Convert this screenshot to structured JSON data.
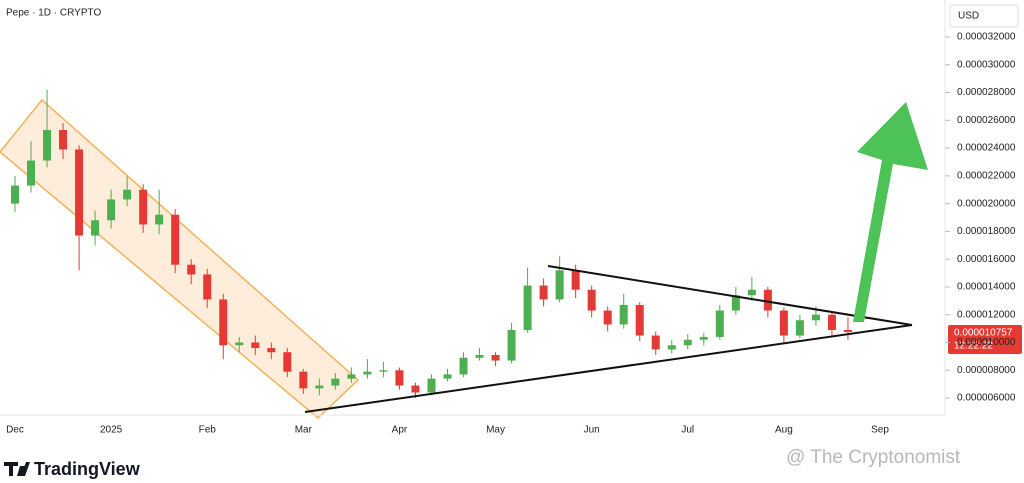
{
  "chart_data": {
    "type": "candlestick",
    "title": "Pepe · 1D · CRYPTO",
    "currency": "USD",
    "last_price_label": "0.000010757",
    "countdown": "12:22:22",
    "brand": "TradingView",
    "watermark": "@ The Cryptonomist",
    "up_color": "#4caf50",
    "down_color": "#e53935",
    "categories": [
      "Dec",
      null,
      null,
      null,
      null,
      null,
      "2025",
      null,
      null,
      null,
      null,
      null,
      "Feb",
      null,
      null,
      null,
      null,
      null,
      "Mar",
      null,
      null,
      null,
      null,
      null,
      "Apr",
      null,
      null,
      null,
      null,
      null,
      "May",
      null,
      null,
      null,
      null,
      null,
      "Jun",
      null,
      null,
      null,
      null,
      null,
      "Jul",
      null,
      null,
      null,
      null,
      null,
      "Aug",
      null,
      null,
      null,
      null,
      null,
      "Sep"
    ],
    "open": [
      2e-05,
      2.13e-05,
      2.31e-05,
      2.53e-05,
      2.39e-05,
      1.77e-05,
      1.88e-05,
      2.03e-05,
      2.1e-05,
      1.85e-05,
      1.92e-05,
      1.56e-05,
      1.49e-05,
      1.31e-05,
      9.8e-06,
      1e-05,
      9.6e-06,
      9.3e-06,
      7.9e-06,
      6.7e-06,
      6.9e-06,
      7.4e-06,
      7.7e-06,
      7.9e-06,
      8e-06,
      6.9e-06,
      6.4e-06,
      7.4e-06,
      7.7e-06,
      8.9e-06,
      9.1e-06,
      8.7e-06,
      1.09e-05,
      1.41e-05,
      1.31e-05,
      1.52e-05,
      1.38e-05,
      1.23e-05,
      1.13e-05,
      1.27e-05,
      1.05e-05,
      9.5e-06,
      9.8e-06,
      1.02e-05,
      1.04e-05,
      1.23e-05,
      1.34e-05,
      1.38e-05,
      1.23e-05,
      1.05e-05,
      1.16e-05,
      1.2e-05,
      1.09e-05,
      null,
      null
    ],
    "high": [
      2.2e-05,
      2.45e-05,
      2.82e-05,
      2.58e-05,
      2.42e-05,
      1.95e-05,
      2.1e-05,
      2.2e-05,
      2.14e-05,
      2.1e-05,
      1.96e-05,
      1.6e-05,
      1.53e-05,
      1.35e-05,
      1.04e-05,
      1.05e-05,
      1e-05,
      9.6e-06,
      8.1e-06,
      7.4e-06,
      7.8e-06,
      8.2e-06,
      8.8e-06,
      8.6e-06,
      8.2e-06,
      7.1e-06,
      7.7e-06,
      8.1e-06,
      9.3e-06,
      9.6e-06,
      9.3e-06,
      1.14e-05,
      1.54e-05,
      1.46e-05,
      1.62e-05,
      1.56e-05,
      1.41e-05,
      1.26e-05,
      1.35e-05,
      1.29e-05,
      1.08e-05,
      1.02e-05,
      1.06e-05,
      1.07e-05,
      1.27e-05,
      1.4e-05,
      1.47e-05,
      1.4e-05,
      1.25e-05,
      1.2e-05,
      1.26e-05,
      1.22e-05,
      1.18e-05,
      null,
      null
    ],
    "low": [
      1.94e-05,
      2.08e-05,
      2.26e-05,
      2.32e-05,
      1.52e-05,
      1.7e-05,
      1.82e-05,
      1.98e-05,
      1.79e-05,
      1.78e-05,
      1.5e-05,
      1.42e-05,
      1.25e-05,
      8.8e-06,
      9.3e-06,
      9.1e-06,
      8.8e-06,
      7.5e-06,
      6.3e-06,
      6.2e-06,
      6.6e-06,
      7.1e-06,
      7.4e-06,
      7.5e-06,
      6.6e-06,
      6e-06,
      6.2e-06,
      7.2e-06,
      7.5e-06,
      8.7e-06,
      8.3e-06,
      8.5e-06,
      1.07e-05,
      1.26e-05,
      1.29e-05,
      1.32e-05,
      1.18e-05,
      1.08e-05,
      1.1e-05,
      1.01e-05,
      9.1e-06,
      9.2e-06,
      9.5e-06,
      9.8e-06,
      1.02e-05,
      1.2e-05,
      1.3e-05,
      1.18e-05,
      1e-05,
      1.03e-05,
      1.12e-05,
      1.04e-05,
      1.02e-05,
      null,
      null
    ],
    "close": [
      2.13e-05,
      2.31e-05,
      2.53e-05,
      2.39e-05,
      1.77e-05,
      1.88e-05,
      2.03e-05,
      2.1e-05,
      1.85e-05,
      1.92e-05,
      1.56e-05,
      1.49e-05,
      1.31e-05,
      9.8e-06,
      1e-05,
      9.6e-06,
      9.3e-06,
      7.9e-06,
      6.7e-06,
      6.9e-06,
      7.4e-06,
      7.7e-06,
      7.9e-06,
      8e-06,
      6.9e-06,
      6.4e-06,
      7.4e-06,
      7.7e-06,
      8.9e-06,
      9.1e-06,
      8.7e-06,
      1.09e-05,
      1.41e-05,
      1.31e-05,
      1.52e-05,
      1.38e-05,
      1.23e-05,
      1.13e-05,
      1.27e-05,
      1.05e-05,
      9.5e-06,
      9.8e-06,
      1.02e-05,
      1.04e-05,
      1.23e-05,
      1.34e-05,
      1.38e-05,
      1.23e-05,
      1.05e-05,
      1.16e-05,
      1.2e-05,
      1.09e-05,
      1.0757e-05,
      null,
      null
    ],
    "ylim": [
      5.14e-06,
      3.466e-05
    ],
    "yticks": [
      {
        "value": 6e-06,
        "label": "0.000006000"
      },
      {
        "value": 8e-06,
        "label": "0.000008000"
      },
      {
        "value": 1e-05,
        "label": "0.000010000"
      },
      {
        "value": 1.2e-05,
        "label": "0.000012000"
      },
      {
        "value": 1.4e-05,
        "label": "0.000014000"
      },
      {
        "value": 1.6e-05,
        "label": "0.000016000"
      },
      {
        "value": 1.8e-05,
        "label": "0.000018000"
      },
      {
        "value": 2e-05,
        "label": "0.000020000"
      },
      {
        "value": 2.2e-05,
        "label": "0.000022000"
      },
      {
        "value": 2.4e-05,
        "label": "0.000024000"
      },
      {
        "value": 2.6e-05,
        "label": "0.000026000"
      },
      {
        "value": 2.8e-05,
        "label": "0.000028000"
      },
      {
        "value": 3e-05,
        "label": "0.000030000"
      },
      {
        "value": 3.2e-05,
        "label": "0.000032000"
      }
    ]
  }
}
